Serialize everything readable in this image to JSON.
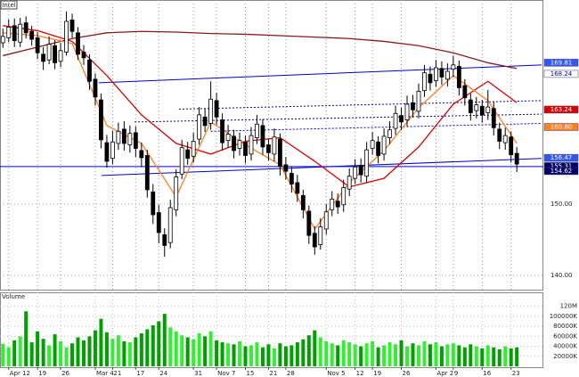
{
  "chart_data": {
    "type": "candlestick",
    "symbol": "Intel",
    "volume_title": "Volume",
    "categories": [
      null,
      "Apr 12",
      null,
      null,
      null,
      null,
      "19",
      null,
      null,
      null,
      "26",
      null,
      null,
      null,
      null,
      null,
      "Mar 4",
      null,
      null,
      "21",
      null,
      null,
      null,
      "17",
      null,
      null,
      null,
      "24",
      null,
      null,
      null,
      null,
      null,
      "31",
      null,
      null,
      null,
      "Nov 7",
      null,
      null,
      null,
      null,
      "15",
      null,
      null,
      null,
      "21",
      null,
      null,
      "28",
      null,
      null,
      null,
      null,
      null,
      null,
      "Nov 5",
      null,
      null,
      null,
      null,
      "12",
      null,
      null,
      "19",
      null,
      null,
      null,
      null,
      "26",
      null,
      null,
      null,
      null,
      null,
      "Apr 2",
      null,
      null,
      "9",
      null,
      null,
      null,
      null,
      "16",
      null,
      null,
      null,
      null,
      "23",
      null
    ],
    "open": [
      172.6,
      173.3,
      175.0,
      172.7,
      175.4,
      174.2,
      173.3,
      171.0,
      170.2,
      172.2,
      170.0,
      171.3,
      175.8,
      174.0,
      171.3,
      170.2,
      167.5,
      164.6,
      158.6,
      156.4,
      158.5,
      160.5,
      158.3,
      160.0,
      157.5,
      156.8,
      151.7,
      148.8,
      145.7,
      144.6,
      149.2,
      154.2,
      157.6,
      156.7,
      159.1,
      162.2,
      161.3,
      164.5,
      161.8,
      158.9,
      159.5,
      157.8,
      158.7,
      157.0,
      159.3,
      161.0,
      158.3,
      157.0,
      159.1,
      155.5,
      154.3,
      153.0,
      151.2,
      149.0,
      145.9,
      144.3,
      146.5,
      149.2,
      150.4,
      149.9,
      152.1,
      153.6,
      155.4,
      153.9,
      157.8,
      158.7,
      157.0,
      159.3,
      160.6,
      162.4,
      161.8,
      164.2,
      163.0,
      165.9,
      168.2,
      167.3,
      169.0,
      167.5,
      168.9,
      169.3,
      166.6,
      164.6,
      163.1,
      163.7,
      162.8,
      163.4,
      160.5,
      158.6,
      159.4,
      157.1
    ],
    "high": [
      174.6,
      175.9,
      176.0,
      176.1,
      176.3,
      175.0,
      174.1,
      172.0,
      173.5,
      173.0,
      172.6,
      177.0,
      176.7,
      174.8,
      172.3,
      171.0,
      168.3,
      165.5,
      159.7,
      160.3,
      161.4,
      161.6,
      161.0,
      160.9,
      158.6,
      157.6,
      152.8,
      149.9,
      146.6,
      150.6,
      154.9,
      159.0,
      158.7,
      160.0,
      163.6,
      163.4,
      167.2,
      165.6,
      162.7,
      161.1,
      160.4,
      160.0,
      159.6,
      160.8,
      162.5,
      161.9,
      159.2,
      160.6,
      159.9,
      156.6,
      155.2,
      154.1,
      152.0,
      149.8,
      146.9,
      148.0,
      150.0,
      151.8,
      151.5,
      153.4,
      155.0,
      156.3,
      156.4,
      158.7,
      160.1,
      159.5,
      160.6,
      161.6,
      163.8,
      163.5,
      165.2,
      165.3,
      166.9,
      169.5,
      169.3,
      170.2,
      170.0,
      169.7,
      170.8,
      170.1,
      167.5,
      165.5,
      165.0,
      164.6,
      166.0,
      164.3,
      161.4,
      160.7,
      160.2,
      158.0
    ],
    "low": [
      171.9,
      172.7,
      172.0,
      172.0,
      173.2,
      172.2,
      170.3,
      168.8,
      169.6,
      168.9,
      169.2,
      170.8,
      173.3,
      170.2,
      169.5,
      166.0,
      163.8,
      157.8,
      155.1,
      155.6,
      157.6,
      157.5,
      157.2,
      156.6,
      155.2,
      150.9,
      147.2,
      144.5,
      142.6,
      143.8,
      148.3,
      153.5,
      155.5,
      155.8,
      158.3,
      160.1,
      160.4,
      161.1,
      157.5,
      157.9,
      156.4,
      156.8,
      155.7,
      156.1,
      158.4,
      156.9,
      156.1,
      156.0,
      154.0,
      153.4,
      151.6,
      150.3,
      148.0,
      144.4,
      142.9,
      143.6,
      145.7,
      148.3,
      148.6,
      148.9,
      151.1,
      152.8,
      153.0,
      153.0,
      156.9,
      155.7,
      156.1,
      158.4,
      159.7,
      160.4,
      160.9,
      162.1,
      162.0,
      165.0,
      165.9,
      166.4,
      166.7,
      166.5,
      167.8,
      165.2,
      163.8,
      161.7,
      162.0,
      161.4,
      161.8,
      159.6,
      157.7,
      157.6,
      155.8,
      154.5
    ],
    "close": [
      173.5,
      174.8,
      172.9,
      175.2,
      174.0,
      173.1,
      171.2,
      170.0,
      172.4,
      169.8,
      171.5,
      175.6,
      174.2,
      171.0,
      170.5,
      167.2,
      165.0,
      159.0,
      156.0,
      158.7,
      160.2,
      158.5,
      159.9,
      157.8,
      156.5,
      152.0,
      148.5,
      146.0,
      144.2,
      149.5,
      153.8,
      157.9,
      156.4,
      158.8,
      162.5,
      161.0,
      164.7,
      162.2,
      158.6,
      159.8,
      157.5,
      158.9,
      156.8,
      159.6,
      161.2,
      158.0,
      157.2,
      159.4,
      155.3,
      154.6,
      152.8,
      151.5,
      149.2,
      145.6,
      144.0,
      146.8,
      148.9,
      150.7,
      149.6,
      152.3,
      153.9,
      155.2,
      154.1,
      157.6,
      158.9,
      156.8,
      159.5,
      160.4,
      162.7,
      161.5,
      164.0,
      163.2,
      165.8,
      168.4,
      167.0,
      169.1,
      167.8,
      168.6,
      169.5,
      166.3,
      164.9,
      162.8,
      163.9,
      162.5,
      163.6,
      160.7,
      158.8,
      159.6,
      156.9,
      155.6
    ],
    "up_color": "#ffffff",
    "down_color": "#000000",
    "xlim": [
      -0.5,
      93.6
    ],
    "ylim": [
      138,
      178.6
    ],
    "yticks": [
      {
        "value": 140,
        "label": "140.00"
      },
      {
        "value": 150,
        "label": "150.00"
      }
    ],
    "grid": true,
    "volume": {
      "values": [
        45000,
        38000,
        52000,
        60000,
        110000,
        48000,
        70000,
        55000,
        42000,
        64000,
        50000,
        38000,
        46000,
        58000,
        52000,
        60000,
        72000,
        95000,
        68000,
        55000,
        62000,
        50000,
        48000,
        58000,
        66000,
        74000,
        82000,
        90000,
        105000,
        78000,
        70000,
        62000,
        58000,
        54000,
        66000,
        60000,
        70000,
        52000,
        48000,
        46000,
        44000,
        50000,
        40000,
        42000,
        48000,
        38000,
        44000,
        36000,
        46000,
        40000,
        42000,
        48000,
        54000,
        62000,
        72000,
        58000,
        50000,
        46000,
        42000,
        52000,
        48000,
        44000,
        40000,
        46000,
        50000,
        38000,
        42000,
        48000,
        44000,
        52000,
        40000,
        46000,
        42000,
        50000,
        44000,
        48000,
        40000,
        44000,
        46000,
        42000,
        38000,
        44000,
        40000,
        36000,
        42000,
        38000,
        34000,
        40000,
        36000,
        38000
      ],
      "up_color": "#33ee33",
      "down_color": "#00a000",
      "ylim": [
        0,
        148000
      ],
      "yticks": [
        {
          "value": 20000,
          "label": "20000K"
        },
        {
          "value": 40000,
          "label": "40000K"
        },
        {
          "value": 60000,
          "label": "60000K"
        },
        {
          "value": 80000,
          "label": "80000K"
        },
        {
          "value": 100000,
          "label": "100000K"
        },
        {
          "value": 120000,
          "label": "120M"
        }
      ]
    },
    "moving_averages": [
      {
        "color": "#8b1a1a",
        "x": [
          0,
          6,
          12,
          18,
          24,
          30,
          36,
          42,
          48,
          54,
          60,
          66,
          72,
          78,
          84,
          89
        ],
        "values": [
          170.8,
          172.0,
          173.2,
          174.0,
          174.2,
          174.1,
          173.9,
          173.8,
          173.6,
          173.4,
          173.2,
          172.8,
          172.2,
          171.2,
          169.8,
          169.0
        ]
      },
      {
        "color": "#dd0000",
        "x": [
          0,
          6,
          12,
          18,
          24,
          30,
          36,
          42,
          48,
          54,
          60,
          66,
          72,
          78,
          84,
          89
        ],
        "values": [
          175.0,
          174.3,
          172.8,
          168.0,
          162.5,
          158.5,
          157.0,
          158.8,
          159.3,
          156.0,
          152.4,
          153.6,
          158.0,
          164.0,
          167.2,
          164.2
        ]
      },
      {
        "color": "#ff7f27",
        "x": [
          0,
          6,
          12,
          18,
          24,
          30,
          36,
          42,
          48,
          54,
          60,
          66,
          72,
          78,
          84,
          89
        ],
        "values": [
          174.0,
          173.6,
          172.5,
          161.0,
          158.5,
          151.0,
          161.5,
          158.3,
          155.5,
          146.5,
          153.0,
          157.5,
          163.5,
          168.0,
          164.5,
          158.5
        ]
      }
    ],
    "trend_lines": [
      {
        "color": "#0000cc",
        "dash": false,
        "x": [
          16.6,
          93.3
        ],
        "values": [
          167.0,
          169.5
        ]
      },
      {
        "color": "#0000cc",
        "dash": false,
        "x": [
          17.1,
          93.3
        ],
        "values": [
          154.0,
          156.4
        ]
      },
      {
        "color": "#0000cc",
        "dash": false,
        "x": [
          -0.5,
          93.6
        ],
        "values": [
          155.25,
          155.25
        ]
      },
      {
        "color": "#0000cc",
        "dash": true,
        "x": [
          30.5,
          93.3
        ],
        "values": [
          163.3,
          164.5
        ]
      },
      {
        "color": "#0000cc",
        "dash": true,
        "x": [
          22.8,
          93.3
        ],
        "values": [
          161.5,
          162.6
        ]
      },
      {
        "color": "#0000cc",
        "dash": true,
        "x": [
          36.0,
          93.3
        ],
        "values": [
          160.2,
          161.3
        ]
      }
    ],
    "price_markers": [
      {
        "value": 169.81,
        "label": "169.81",
        "color": "#3355ff",
        "text_color": "#ffffff"
      },
      {
        "value": 168.24,
        "label": "168.24",
        "color": "#ffffff",
        "text_color": "#0000aa"
      },
      {
        "value": 163.24,
        "label": "163.24",
        "color": "#dd0000",
        "text_color": "#ffffff"
      },
      {
        "value": 160.8,
        "label": "160.80",
        "color": "#ff7f27",
        "text_color": "#ffffff"
      },
      {
        "value": 156.47,
        "label": "156.47",
        "color": "#3355ff",
        "text_color": "#ffffff"
      },
      {
        "value": 155.31,
        "label": "155.31",
        "color": "#000066",
        "text_color": "#ffffff"
      },
      {
        "value": 154.62,
        "label": "154.62",
        "color": "#000066",
        "text_color": "#ffffff"
      }
    ]
  }
}
